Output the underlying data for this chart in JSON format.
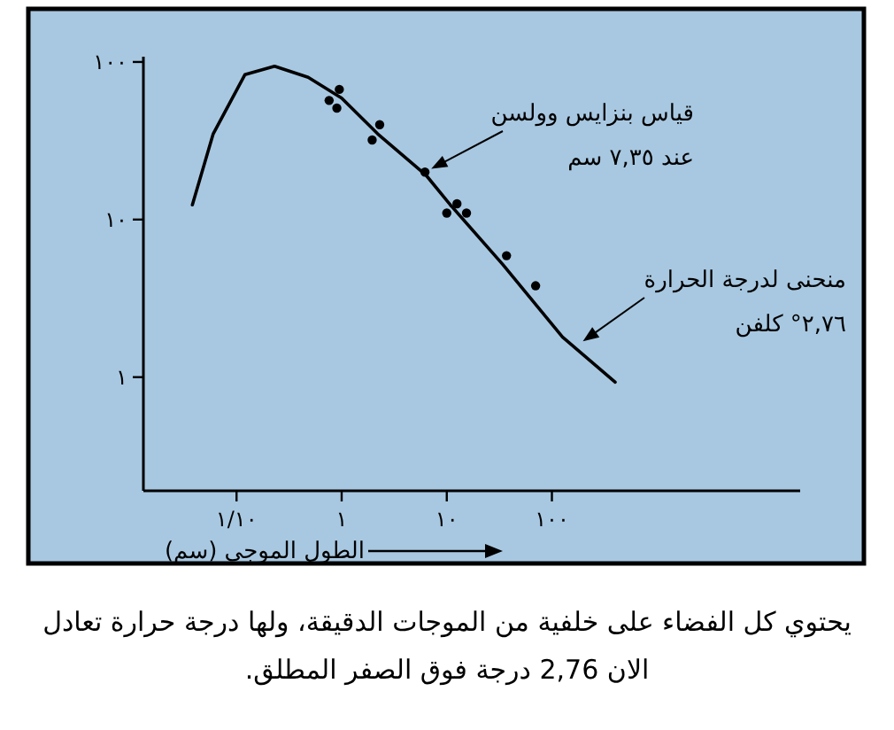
{
  "chart_data": {
    "type": "line",
    "xlabel": "الطول الموجي (سم)",
    "log": "xy",
    "grid": false,
    "xlim": [
      0.013,
      23000
    ],
    "ylim": [
      0.19,
      108
    ],
    "xticks": [
      {
        "value": 0.1,
        "label": "١/١٠"
      },
      {
        "value": 1,
        "label": "١"
      },
      {
        "value": 10,
        "label": "١٠"
      },
      {
        "value": 100,
        "label": "١٠٠"
      }
    ],
    "yticks": [
      {
        "value": 1,
        "label": "١"
      },
      {
        "value": 10,
        "label": "١٠"
      },
      {
        "value": 100,
        "label": "١٠٠"
      }
    ],
    "series": [
      {
        "type": "line",
        "color": "#000000",
        "marker": "none",
        "line_style": "solid",
        "x": [
          0.038,
          0.06,
          0.12,
          0.23,
          0.48,
          1,
          2.2,
          6.4,
          10.8,
          34,
          126,
          400
        ],
        "values": [
          12.4,
          35,
          83,
          94,
          80,
          59,
          35,
          19,
          12.4,
          5.2,
          1.8,
          0.93
        ]
      },
      {
        "type": "scatter",
        "color": "#000000",
        "marker": "circle",
        "x": [
          0.76,
          0.95,
          0.9,
          1.95,
          2.3,
          6.2,
          10,
          12.5,
          15.4,
          37,
          70
        ],
        "values": [
          57,
          67,
          51,
          32,
          40,
          20,
          11,
          12.6,
          11,
          5.9,
          3.8
        ]
      }
    ],
    "annotations": [
      {
        "text": "قياس بنزايس وولسن\nعند ٧,٣٥ سم",
        "x": 6.2,
        "y": 20
      },
      "منحنى لدرجة الحرارة\n٢,٧٦° كلفن",
      "يحتوي كل الفضاء على خلفية من الموجات الدقيقة، ولها درجة حرارة تعادل الان 2,76 درجة فوق الصفر المطلق."
    ]
  }
}
